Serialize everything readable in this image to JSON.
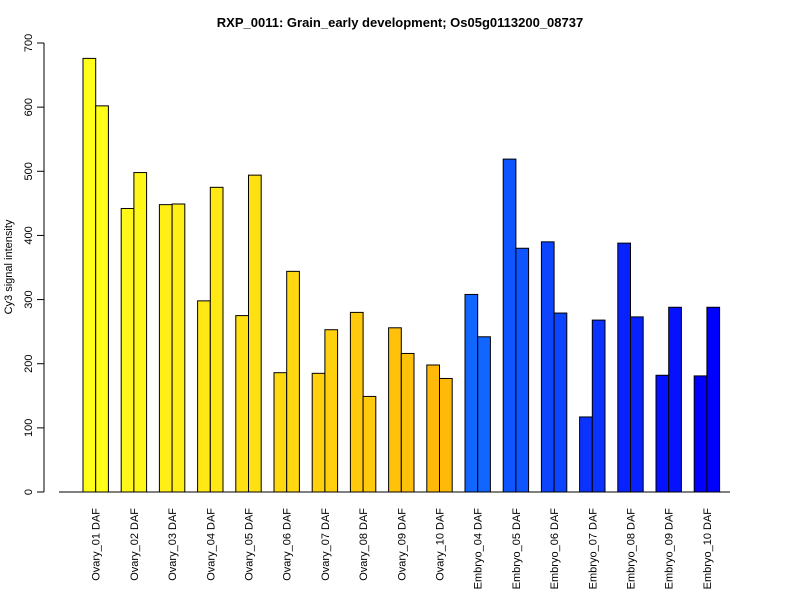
{
  "chart_data": {
    "type": "bar",
    "title": "RXP_0011: Grain_early development; Os05g0113200_08737",
    "xlabel": "",
    "ylabel": "Cy3 signal intensity",
    "ylim": [
      0,
      700
    ],
    "yticks": [
      0,
      100,
      200,
      300,
      400,
      500,
      600,
      700
    ],
    "grid": false,
    "categories": [
      "Ovary_01 DAF",
      "Ovary_02 DAF",
      "Ovary_03 DAF",
      "Ovary_04 DAF",
      "Ovary_05 DAF",
      "Ovary_06 DAF",
      "Ovary_07 DAF",
      "Ovary_08 DAF",
      "Ovary_09 DAF",
      "Ovary_10 DAF",
      "Embryo_04 DAF",
      "Embryo_05 DAF",
      "Embryo_06 DAF",
      "Embryo_07 DAF",
      "Embryo_08 DAF",
      "Embryo_09 DAF",
      "Embryo_10 DAF"
    ],
    "series": [
      {
        "values": [
          676,
          442,
          448,
          298,
          275,
          186,
          185,
          280,
          256,
          198,
          308,
          519,
          390,
          117,
          388,
          182,
          181
        ]
      },
      {
        "values": [
          602,
          498,
          449,
          475,
          494,
          344,
          253,
          149,
          216,
          177,
          242,
          380,
          279,
          268,
          273,
          288,
          288
        ]
      }
    ],
    "group_colors": [
      "#FFFF19",
      "#FFF717",
      "#FFEF16",
      "#FFE814",
      "#FFE012",
      "#FFD810",
      "#FFD00E",
      "#FFC90C",
      "#FFC10A",
      "#FFB908",
      "#1166FF",
      "#0F55FF",
      "#0C44FF",
      "#0A33FF",
      "#0722FF",
      "#0511FF",
      "#0000FF"
    ]
  }
}
